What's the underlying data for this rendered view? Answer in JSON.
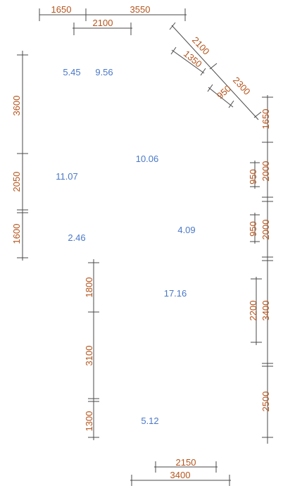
{
  "colors": {
    "dimension": "#b5541c",
    "area": "#4a78c8",
    "line": "#4a4a4a"
  },
  "dimensions": {
    "top_1650": "1650",
    "top_3550": "3550",
    "top_2100": "2100",
    "diag_2100": "2100",
    "diag_1350": "1350",
    "diag_2300": "2300",
    "diag_950": "950",
    "left_3600": "3600",
    "left_2050": "2050",
    "left_1600": "1600",
    "mid_1800": "1800",
    "mid_3100": "3100",
    "mid_1300": "1300",
    "right_1650": "1650",
    "right_2000a": "2000",
    "right_950a": "950",
    "right_2000b": "2000",
    "right_950b": "950",
    "right_3400": "3400",
    "right_2200": "2200",
    "right_2500": "2500",
    "bottom_2150": "2150",
    "bottom_3400": "3400"
  },
  "areas": {
    "a_5_45": "5.45",
    "a_9_56": "9.56",
    "a_10_06": "10.06",
    "a_11_07": "11.07",
    "a_2_46": "2.46",
    "a_4_09": "4.09",
    "a_17_16": "17.16",
    "a_5_12": "5.12"
  }
}
